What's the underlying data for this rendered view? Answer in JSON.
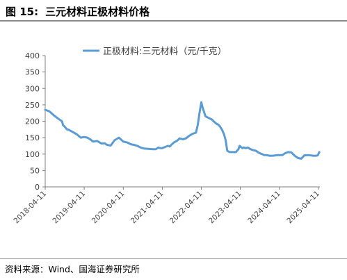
{
  "figure": {
    "label": "图 15:",
    "title": "三元材料正极材料价格",
    "source": "资料来源：Wind、国海证券研究所"
  },
  "chart_data": {
    "type": "line",
    "title": "",
    "xlabel": "",
    "ylabel": "",
    "ylim": [
      0,
      400
    ],
    "yticks": [
      0,
      50,
      100,
      150,
      200,
      250,
      300,
      350,
      400
    ],
    "xlim": [
      "2018-04-11",
      "2025-04-25"
    ],
    "xticks": [
      "2018-04-11",
      "2019-04-11",
      "2020-04-11",
      "2021-04-11",
      "2022-04-11",
      "2023-04-11",
      "2024-04-11",
      "2025-04-11"
    ],
    "grid": false,
    "legend": "top-center",
    "series": [
      {
        "name": "正极材料:三元材料（元/千克）",
        "color": "#5b9bd5",
        "x": [
          "2018-04-11",
          "2018-05-20",
          "2018-07-01",
          "2018-08-10",
          "2018-09-15",
          "2018-09-25",
          "2018-10-15",
          "2018-11-01",
          "2018-11-10",
          "2018-12-20",
          "2019-02-01",
          "2019-03-10",
          "2019-04-11",
          "2019-05-10",
          "2019-06-01",
          "2019-07-05",
          "2019-08-10",
          "2019-09-20",
          "2019-10-20",
          "2019-11-10",
          "2019-12-15",
          "2020-01-20",
          "2020-03-01",
          "2020-04-11",
          "2020-05-20",
          "2020-06-20",
          "2020-07-20",
          "2020-08-20",
          "2020-09-20",
          "2020-10-20",
          "2020-12-01",
          "2021-01-10",
          "2021-02-10",
          "2021-03-05",
          "2021-03-15",
          "2021-03-25",
          "2021-04-11",
          "2021-05-10",
          "2021-06-05",
          "2021-06-20",
          "2021-07-10",
          "2021-08-01",
          "2021-08-25",
          "2021-09-20",
          "2021-10-20",
          "2021-11-20",
          "2021-12-20",
          "2022-01-20",
          "2022-02-20",
          "2022-03-10",
          "2022-03-25",
          "2022-04-05",
          "2022-04-11",
          "2022-04-25",
          "2022-05-20",
          "2022-06-20",
          "2022-07-20",
          "2022-08-10",
          "2022-09-01",
          "2022-09-15",
          "2022-10-01",
          "2022-10-20",
          "2022-11-10",
          "2022-11-25",
          "2022-12-10",
          "2023-01-01",
          "2023-02-01",
          "2023-03-01",
          "2023-03-25",
          "2023-04-05",
          "2023-04-15",
          "2023-05-01",
          "2023-05-15",
          "2023-06-01",
          "2023-06-20",
          "2023-07-15",
          "2023-08-10",
          "2023-09-05",
          "2023-10-01",
          "2023-11-01",
          "2023-11-20",
          "2023-12-10",
          "2024-01-10",
          "2024-02-10",
          "2024-03-05",
          "2024-03-20",
          "2024-04-11",
          "2024-05-10",
          "2024-06-01",
          "2024-07-01",
          "2024-08-01",
          "2024-09-01",
          "2024-10-01",
          "2024-11-01",
          "2024-12-01",
          "2025-01-10",
          "2025-02-20",
          "2025-03-20",
          "2025-04-05",
          "2025-04-20"
        ],
        "y": [
          235,
          230,
          218,
          208,
          200,
          188,
          182,
          175,
          175,
          168,
          160,
          150,
          152,
          150,
          146,
          138,
          140,
          132,
          133,
          128,
          126,
          142,
          150,
          138,
          135,
          130,
          128,
          125,
          120,
          117,
          116,
          115,
          115,
          120,
          119,
          118,
          118,
          122,
          125,
          123,
          130,
          136,
          140,
          148,
          145,
          148,
          156,
          162,
          165,
          190,
          225,
          245,
          258,
          240,
          215,
          210,
          205,
          198,
          192,
          190,
          185,
          175,
          160,
          142,
          110,
          106,
          106,
          106,
          115,
          125,
          122,
          118,
          120,
          118,
          120,
          115,
          112,
          110,
          104,
          100,
          97,
          97,
          95,
          95,
          96,
          97,
          97,
          97,
          102,
          106,
          105,
          95,
          88,
          86,
          96,
          97,
          95,
          95,
          96,
          106
        ]
      }
    ]
  }
}
